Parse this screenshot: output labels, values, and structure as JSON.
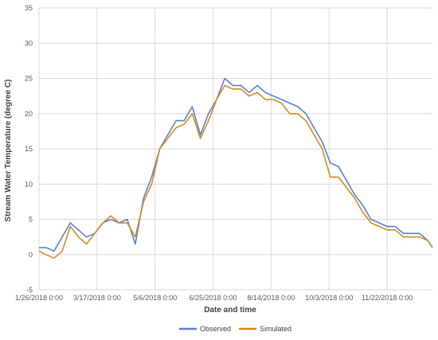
{
  "chart_data": {
    "type": "line",
    "title": "",
    "xlabel": "Date and time",
    "ylabel": "Stream Water Temperature (degree C)",
    "ylim": [
      -5,
      35
    ],
    "y_ticks": [
      -5,
      0,
      5,
      10,
      15,
      20,
      25,
      30,
      35
    ],
    "x_range": [
      "1/26/2018 0:00",
      "12/31/2018 0:00"
    ],
    "x_ticks": [
      "1/26/2018 0:00",
      "3/17/2018 0:00",
      "5/6/2018 0:00",
      "6/25/2018 0:00",
      "8/14/2018 0:00",
      "10/3/2018 0:00",
      "11/22/2018 0:00"
    ],
    "grid": true,
    "legend_position": "bottom",
    "series": [
      {
        "name": "Observed",
        "color": "#5B7FD8",
        "x": [
          "1/26/2018",
          "2/1/2018",
          "2/8/2018",
          "2/15/2018",
          "2/22/2018",
          "3/1/2018",
          "3/8/2018",
          "3/15/2018",
          "3/22/2018",
          "3/29/2018",
          "4/5/2018",
          "4/12/2018",
          "4/19/2018",
          "4/26/2018",
          "5/3/2018",
          "5/10/2018",
          "5/17/2018",
          "5/24/2018",
          "5/31/2018",
          "6/7/2018",
          "6/14/2018",
          "6/21/2018",
          "6/28/2018",
          "7/5/2018",
          "7/12/2018",
          "7/19/2018",
          "7/26/2018",
          "8/2/2018",
          "8/9/2018",
          "8/16/2018",
          "8/23/2018",
          "8/30/2018",
          "9/6/2018",
          "9/13/2018",
          "9/20/2018",
          "9/27/2018",
          "10/4/2018",
          "10/11/2018",
          "10/18/2018",
          "10/25/2018",
          "11/1/2018",
          "11/8/2018",
          "11/15/2018",
          "11/22/2018",
          "11/29/2018",
          "12/6/2018",
          "12/13/2018",
          "12/20/2018",
          "12/27/2018",
          "12/31/2018"
        ],
        "y": [
          1,
          1,
          0.5,
          2.5,
          4.5,
          3.5,
          2.5,
          3,
          4.5,
          5,
          4.5,
          5,
          1.5,
          8,
          11,
          15,
          17,
          19,
          19,
          21,
          17,
          20,
          22,
          25,
          24,
          24,
          23,
          24,
          23,
          22.5,
          22,
          21.5,
          21,
          20,
          18,
          16,
          13,
          12.5,
          10.5,
          8.5,
          7,
          5,
          4.5,
          4,
          4,
          3,
          3,
          3,
          2,
          1
        ]
      },
      {
        "name": "Simulated",
        "color": "#D28B1F",
        "x": [
          "1/26/2018",
          "2/1/2018",
          "2/8/2018",
          "2/15/2018",
          "2/22/2018",
          "3/1/2018",
          "3/8/2018",
          "3/15/2018",
          "3/22/2018",
          "3/29/2018",
          "4/5/2018",
          "4/12/2018",
          "4/19/2018",
          "4/26/2018",
          "5/3/2018",
          "5/10/2018",
          "5/17/2018",
          "5/24/2018",
          "5/31/2018",
          "6/7/2018",
          "6/14/2018",
          "6/21/2018",
          "6/28/2018",
          "7/5/2018",
          "7/12/2018",
          "7/19/2018",
          "7/26/2018",
          "8/2/2018",
          "8/9/2018",
          "8/16/2018",
          "8/23/2018",
          "8/30/2018",
          "9/6/2018",
          "9/13/2018",
          "9/20/2018",
          "9/27/2018",
          "10/4/2018",
          "10/11/2018",
          "10/18/2018",
          "10/25/2018",
          "11/1/2018",
          "11/8/2018",
          "11/15/2018",
          "11/22/2018",
          "11/29/2018",
          "12/6/2018",
          "12/13/2018",
          "12/20/2018",
          "12/27/2018",
          "12/31/2018"
        ],
        "y": [
          0.5,
          0,
          -0.5,
          0.5,
          4,
          2.5,
          1.5,
          3,
          4.5,
          5.5,
          4.5,
          4.5,
          2.5,
          7.5,
          10,
          15,
          16.5,
          18,
          18.5,
          20,
          16.5,
          19,
          22,
          24,
          23.5,
          23.5,
          22.5,
          23,
          22,
          22,
          21.5,
          20,
          20,
          19,
          17,
          15,
          11,
          11,
          9.5,
          8,
          6,
          4.5,
          4,
          3.5,
          3.5,
          2.5,
          2.5,
          2.5,
          2,
          1
        ]
      }
    ]
  }
}
